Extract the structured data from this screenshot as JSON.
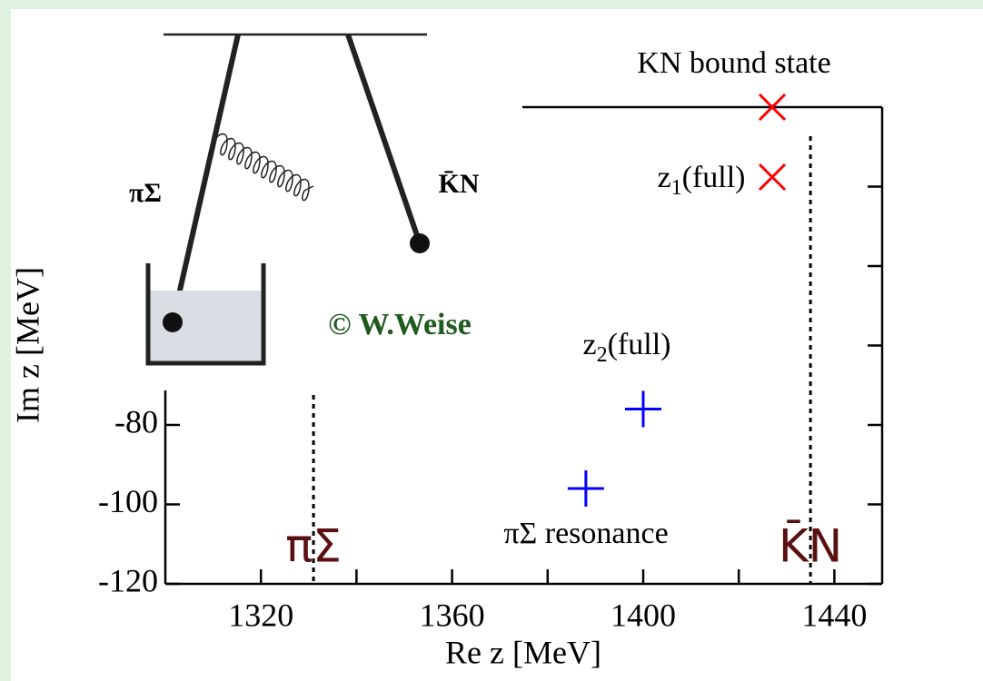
{
  "chart_data": {
    "type": "scatter",
    "xlabel": "Re z [MeV]",
    "ylabel": "Im z [MeV]",
    "xlim": [
      1300,
      1450
    ],
    "ylim": [
      -120,
      0
    ],
    "xticks": [
      1320,
      1360,
      1400,
      1440
    ],
    "minor_xticks": [
      1340,
      1380,
      1420
    ],
    "yticks": [
      -120,
      -100,
      -80
    ],
    "minor_yticks": [
      -60,
      -40,
      -20
    ],
    "points": [
      {
        "label": [
          "KN bound state"
        ],
        "x": 1427,
        "y": 0,
        "marker": "x",
        "color": "#ff0000"
      },
      {
        "label": [
          "z",
          "1",
          "(full)"
        ],
        "x": 1427,
        "y": -17.6,
        "marker": "x",
        "color": "#ff0000"
      },
      {
        "label": [
          "z",
          "2",
          "(full)"
        ],
        "x": 1400,
        "y": -76,
        "marker": "+",
        "color": "#0000ff"
      },
      {
        "label": [
          "πΣ resonance"
        ],
        "x": 1388,
        "y": -96,
        "marker": "+",
        "color": "#0000ff"
      }
    ],
    "thresholds": [
      {
        "label": "πΣ",
        "x": 1331
      },
      {
        "label": "K̄N",
        "x": 1435
      }
    ],
    "threshold_color": "#5a1010"
  },
  "diagram": {
    "labels": [
      "πΣ",
      "K̄N"
    ],
    "credit": "© W.Weise"
  }
}
